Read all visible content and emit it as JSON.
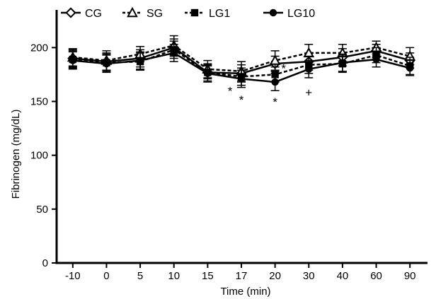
{
  "chart_data": {
    "type": "line",
    "title": "",
    "xlabel": "Time (min)",
    "ylabel": "Fibrinogen (mg/dL)",
    "categories": [
      "-10",
      "0",
      "5",
      "10",
      "15",
      "17",
      "20",
      "30",
      "40",
      "60",
      "90"
    ],
    "ylim": [
      0,
      235
    ],
    "yticks": [
      0,
      50,
      100,
      150,
      200
    ],
    "grid": false,
    "legend_position": "top",
    "series": [
      {
        "name": "CG",
        "marker": "diamond-open",
        "line": "solid",
        "values": [
          190,
          187,
          190,
          200,
          177,
          176,
          185,
          187,
          191,
          197,
          188
        ],
        "errors": [
          8,
          8,
          8,
          8,
          6,
          8,
          7,
          8,
          8,
          6,
          7
        ]
      },
      {
        "name": "SG",
        "marker": "triangle-open",
        "line": "dashed",
        "values": [
          191,
          188,
          194,
          202,
          180,
          178,
          188,
          195,
          195,
          200,
          192
        ],
        "errors": [
          8,
          9,
          7,
          9,
          8,
          9,
          9,
          8,
          8,
          6,
          8
        ]
      },
      {
        "name": "LG1",
        "marker": "square-filled",
        "line": "dashed",
        "values": [
          189,
          186,
          187,
          198,
          177,
          173,
          175,
          184,
          185,
          193,
          183
        ],
        "errors": [
          8,
          8,
          8,
          8,
          8,
          8,
          7,
          8,
          8,
          7,
          8
        ]
      },
      {
        "name": "LG10",
        "marker": "circle-filled",
        "line": "solid",
        "values": [
          188,
          185,
          188,
          195,
          176,
          171,
          168,
          180,
          186,
          189,
          181
        ],
        "errors": [
          8,
          8,
          8,
          8,
          8,
          8,
          8,
          8,
          8,
          7,
          7
        ]
      }
    ],
    "annotations": [
      {
        "text": "*",
        "category": "17",
        "y": 161,
        "side": "left"
      },
      {
        "text": "*",
        "category": "17",
        "y": 153,
        "side": "center"
      },
      {
        "text": "*",
        "category": "20",
        "y": 151,
        "side": "center"
      },
      {
        "text": "*",
        "category": "20",
        "y": 182,
        "side": "right"
      },
      {
        "text": "+",
        "category": "30",
        "y": 160,
        "side": "center"
      }
    ]
  }
}
